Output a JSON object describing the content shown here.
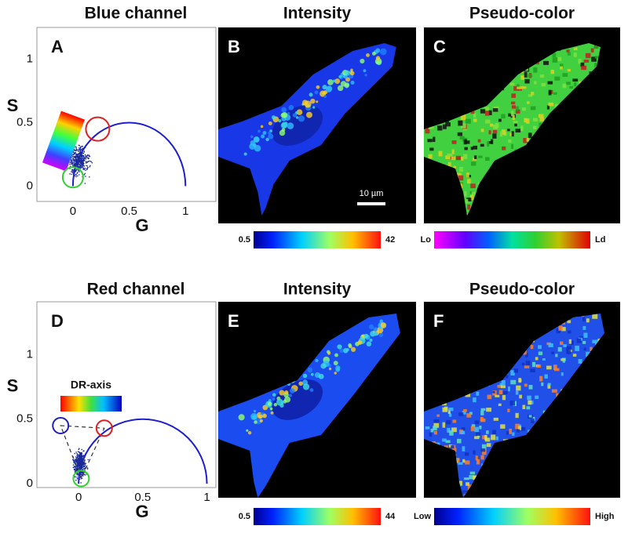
{
  "panels": [
    {
      "kind": "phasor",
      "letter": "A",
      "title": "Blue channel",
      "x_label": "G",
      "y_label": "S",
      "xlim": [
        -0.32,
        1.27
      ],
      "ylim": [
        -0.12,
        1.25
      ],
      "xticks": [
        0,
        0.5,
        1
      ],
      "yticks": [
        0,
        0.5,
        1
      ]
    },
    {
      "kind": "intensity",
      "letter": "B",
      "title": "Intensity",
      "scale_bar": "10 µm",
      "colorbar": {
        "min_label": 0.5,
        "max_label": 42
      }
    },
    {
      "kind": "pseudo",
      "letter": "C",
      "title": "Pseudo-color",
      "colorbar": {
        "min_label": "Lo",
        "max_label": "Ld"
      }
    },
    {
      "kind": "phasor",
      "letter": "D",
      "title": "Red channel",
      "x_label": "G",
      "y_label": "S",
      "xlim": [
        -0.325,
        1.07
      ],
      "ylim": [
        -0.03,
        1.41
      ],
      "xticks": [
        0,
        0.5,
        1
      ],
      "yticks": [
        0,
        0.5,
        1
      ],
      "annotation": "DR-axis"
    },
    {
      "kind": "intensity",
      "letter": "E",
      "title": "Intensity",
      "colorbar": {
        "min_label": 0.5,
        "max_label": 44
      }
    },
    {
      "kind": "pseudo",
      "letter": "F",
      "title": "Pseudo-color",
      "colorbar": {
        "min_label": "Low",
        "max_label": "High"
      }
    }
  ]
}
